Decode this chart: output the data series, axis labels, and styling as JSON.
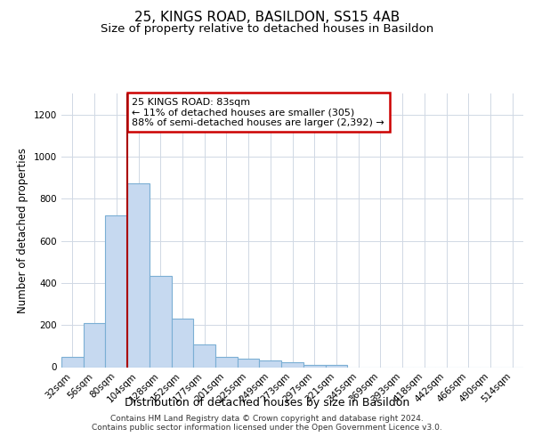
{
  "title": "25, KINGS ROAD, BASILDON, SS15 4AB",
  "subtitle": "Size of property relative to detached houses in Basildon",
  "xlabel": "Distribution of detached houses by size in Basildon",
  "ylabel": "Number of detached properties",
  "categories": [
    "32sqm",
    "56sqm",
    "80sqm",
    "104sqm",
    "128sqm",
    "152sqm",
    "177sqm",
    "201sqm",
    "225sqm",
    "249sqm",
    "273sqm",
    "297sqm",
    "321sqm",
    "345sqm",
    "369sqm",
    "393sqm",
    "418sqm",
    "442sqm",
    "466sqm",
    "490sqm",
    "514sqm"
  ],
  "values": [
    50,
    210,
    720,
    875,
    435,
    230,
    107,
    47,
    42,
    30,
    22,
    10,
    12,
    0,
    0,
    0,
    0,
    0,
    0,
    0,
    0
  ],
  "bar_color": "#c6d9f0",
  "bar_edge_color": "#7bafd4",
  "grid_color": "#d0d8e4",
  "ylim": [
    0,
    1300
  ],
  "yticks": [
    0,
    200,
    400,
    600,
    800,
    1000,
    1200
  ],
  "property_line_index": 2,
  "property_line_color": "#aa0000",
  "annotation_text": "25 KINGS ROAD: 83sqm\n← 11% of detached houses are smaller (305)\n88% of semi-detached houses are larger (2,392) →",
  "annotation_box_color": "#cc0000",
  "footer_line1": "Contains HM Land Registry data © Crown copyright and database right 2024.",
  "footer_line2": "Contains public sector information licensed under the Open Government Licence v3.0.",
  "title_fontsize": 11,
  "subtitle_fontsize": 9.5,
  "ylabel_fontsize": 8.5,
  "xlabel_fontsize": 9,
  "tick_fontsize": 7.5,
  "footer_fontsize": 6.5
}
